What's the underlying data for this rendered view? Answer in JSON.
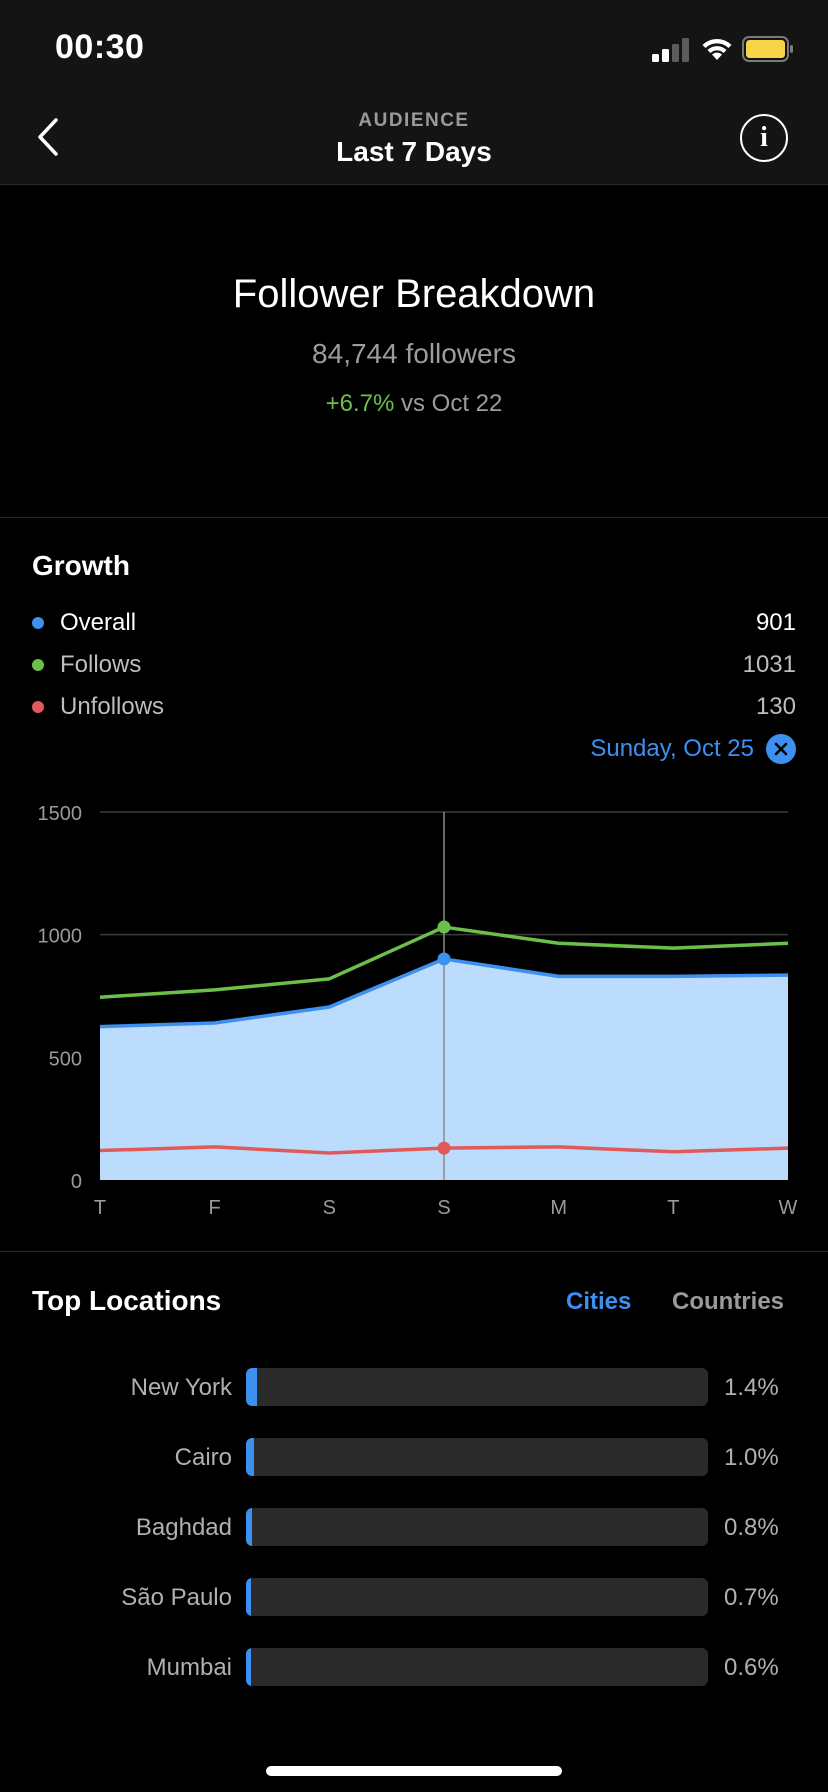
{
  "status_bar": {
    "time": "00:30"
  },
  "nav": {
    "subtitle": "AUDIENCE",
    "title": "Last 7 Days",
    "info_icon": "info-icon",
    "back_icon": "chevron-left-icon"
  },
  "summary": {
    "title": "Follower Breakdown",
    "followers": "84,744 followers",
    "change": "+6.7%",
    "change_suffix": " vs Oct 22",
    "positive_color": "#6cc04a"
  },
  "growth": {
    "title": "Growth",
    "legend": [
      {
        "name": "Overall",
        "value": "901",
        "color": "#3d8ff0"
      },
      {
        "name": "Follows",
        "value": "1031",
        "color": "#6cc04a"
      },
      {
        "name": "Unfollows",
        "value": "130",
        "color": "#e05a5a"
      }
    ],
    "selected_date": "Sunday, Oct 25"
  },
  "chart_data": {
    "type": "line",
    "categories": [
      "T",
      "F",
      "S",
      "S",
      "M",
      "T",
      "W"
    ],
    "series": [
      {
        "name": "Overall",
        "values": [
          625,
          640,
          705,
          901,
          830,
          830,
          835
        ],
        "color": "#3d8ff0",
        "fill": "#bcdcfd"
      },
      {
        "name": "Follows",
        "values": [
          745,
          775,
          820,
          1031,
          965,
          945,
          965
        ],
        "color": "#6cc04a"
      },
      {
        "name": "Unfollows",
        "values": [
          120,
          135,
          110,
          130,
          135,
          115,
          130
        ],
        "color": "#e05a5a"
      }
    ],
    "ylim": [
      0,
      1500
    ],
    "yticks": [
      "0",
      "500",
      "1000",
      "1500"
    ],
    "selected_index": 3,
    "grid": true
  },
  "locations": {
    "title": "Top Locations",
    "tab_cities": "Cities",
    "tab_countries": "Countries",
    "items": [
      {
        "name": "New York",
        "pct": "1.4%",
        "value": 1.4
      },
      {
        "name": "Cairo",
        "pct": "1.0%",
        "value": 1.0
      },
      {
        "name": "Baghdad",
        "pct": "0.8%",
        "value": 0.8
      },
      {
        "name": "São Paulo",
        "pct": "0.7%",
        "value": 0.7
      },
      {
        "name": "Mumbai",
        "pct": "0.6%",
        "value": 0.6
      }
    ]
  }
}
